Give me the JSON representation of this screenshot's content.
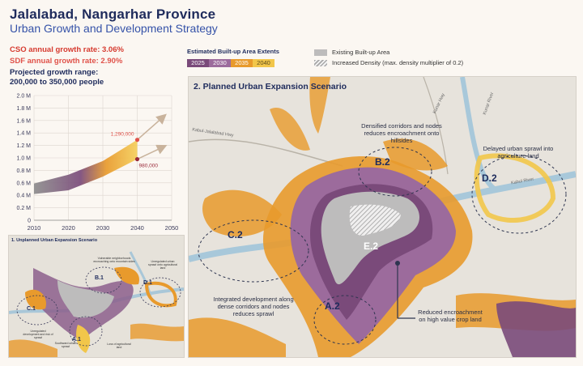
{
  "header": {
    "title": "Jalalabad, Nangarhar Province",
    "subtitle": "Urban Growth and Development Strategy"
  },
  "rates": {
    "cso": "CSO annual growth rate: 3.06%",
    "sdf": "SDF annual growth rate: 2.90%",
    "range_label": "Projected growth range:",
    "range_value": "200,000 to 350,000 people"
  },
  "legend": {
    "title": "Estimated Built-up Area Extents",
    "years": [
      "2025",
      "2030",
      "2035",
      "2040"
    ],
    "year_colors": [
      "#7a4a7a",
      "#9c6b9c",
      "#e89a2c",
      "#f2c64a"
    ],
    "existing": "Existing Built-up Area",
    "density": "Increased Density (max. density multiplier of 0.2)"
  },
  "chart_data": {
    "type": "area",
    "x": [
      2010,
      2020,
      2030,
      2040,
      2050
    ],
    "xlabels": [
      "2010",
      "2020",
      "2030",
      "2040",
      "2050"
    ],
    "yticks": [
      "0",
      "0.2 M",
      "0.4 M",
      "0.6 M",
      "0.8 M",
      "1.0 M",
      "1.2 M",
      "1.4 M",
      "1.6 M",
      "1.8 M",
      "2.0 M"
    ],
    "ylim": [
      0,
      2000000
    ],
    "upper": [
      {
        "x": 2010,
        "y": 590000
      },
      {
        "x": 2020,
        "y": 730000
      },
      {
        "x": 2030,
        "y": 950000
      },
      {
        "x": 2040,
        "y": 1290000
      }
    ],
    "lower": [
      {
        "x": 2010,
        "y": 420000
      },
      {
        "x": 2020,
        "y": 480000
      },
      {
        "x": 2030,
        "y": 700000
      },
      {
        "x": 2040,
        "y": 980000
      }
    ],
    "annotations": [
      "1,290,000",
      "980,000"
    ],
    "annotation_values": [
      1290000,
      980000
    ]
  },
  "small_map": {
    "title": "1. Unplanned Urban Expansion Scenario",
    "labels": [
      "B.1",
      "D.1",
      "C.1",
      "A.1"
    ],
    "notes": [
      "Unregulated development and risk of sprawl",
      "Southward urban sprawl",
      "Loss of agricultural land",
      "Vulnerable neighborhoods encroaching onto mountain sides",
      "Unregulated urban sprawl onto agricultural land"
    ]
  },
  "main_map": {
    "title": "2. Planned Urban Expansion Scenario",
    "zones": [
      "B.2",
      "D.2",
      "C.2",
      "E.2",
      "A.2"
    ],
    "notes": {
      "b2": "Densified corridors and nodes reduces encroachment onto hillsides",
      "d2": "Delayed urban sprawl into agriculture land",
      "c2": "Integrated development along dense corridors and nodes reduces sprawl",
      "e2": "Reduced encroachment on high value crop land"
    },
    "roads": [
      "Kabul-Jalalabad Hwy",
      "Kunar River",
      "Kabul River",
      "Kunar Hwy"
    ]
  }
}
